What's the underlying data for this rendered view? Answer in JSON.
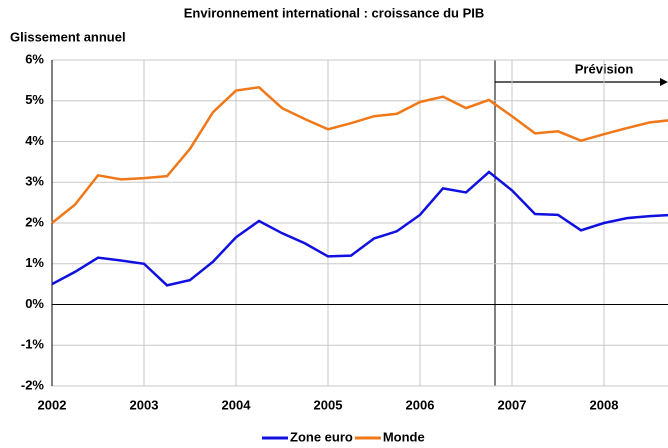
{
  "chart_data": {
    "type": "line",
    "title": "Environnement international : croissance du PIB",
    "y_label": "Glissement annuel",
    "annotation": "Prévision",
    "categories": [
      "2002",
      null,
      null,
      null,
      "2003",
      null,
      null,
      null,
      "2004",
      null,
      null,
      null,
      "2005",
      null,
      null,
      null,
      "2006",
      null,
      null,
      null,
      "2007",
      null,
      null,
      null,
      "2008",
      null,
      null,
      null
    ],
    "series": [
      {
        "name": "Zone euro",
        "color": "#1010e0",
        "values": [
          0.5,
          0.8,
          1.15,
          1.08,
          1.0,
          0.47,
          0.6,
          1.05,
          1.65,
          2.05,
          1.75,
          1.5,
          1.18,
          1.2,
          1.62,
          1.8,
          2.2,
          2.85,
          2.75,
          3.25,
          2.8,
          2.22,
          2.2,
          1.82,
          2.0,
          2.12,
          2.17,
          2.2
        ]
      },
      {
        "name": "Monde",
        "color": "#f07818",
        "values": [
          2.0,
          2.45,
          3.17,
          3.07,
          3.1,
          3.15,
          3.82,
          4.72,
          5.25,
          5.33,
          4.82,
          4.55,
          4.3,
          4.45,
          4.62,
          4.68,
          4.97,
          5.1,
          4.82,
          5.02,
          4.62,
          4.2,
          4.25,
          4.02,
          4.18,
          4.33,
          4.47,
          4.53
        ]
      }
    ],
    "ylim": [
      -2,
      6
    ],
    "yticks": [
      {
        "value": -2,
        "label": "-2%"
      },
      {
        "value": -1,
        "label": "-1%"
      },
      {
        "value": 0,
        "label": "0%"
      },
      {
        "value": 1,
        "label": "1%"
      },
      {
        "value": 2,
        "label": "2%"
      },
      {
        "value": 3,
        "label": "3%"
      },
      {
        "value": 4,
        "label": "4%"
      },
      {
        "value": 5,
        "label": "5%"
      },
      {
        "value": 6,
        "label": "6%"
      }
    ],
    "grid": true
  }
}
